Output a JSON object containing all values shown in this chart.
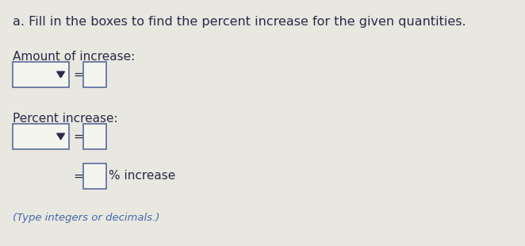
{
  "bg_color": "#e8e8e0",
  "title_text": "a. Fill in the boxes to find the percent increase for the given quantities.",
  "title_color": "#2a2a4a",
  "title_fontsize": 11.5,
  "title_bold": false,
  "label1": "Amount of increase:",
  "label2": "Percent increase:",
  "label_color": "#2a2a4a",
  "label_fontsize": 11,
  "box_edge_color": "#5a6a9a",
  "box_face_color": "#f5f5f0",
  "equals_color": "#2a2a4a",
  "equals_fontsize": 11,
  "pct_text": "% increase",
  "pct_color": "#2a2a4a",
  "pct_fontsize": 11,
  "footer_text": "(Type integers or decimals.)",
  "footer_color": "#4466aa",
  "footer_fontsize": 9.5,
  "footer_italic": true,
  "dropdown_arrow_color": "#2a2a4a"
}
